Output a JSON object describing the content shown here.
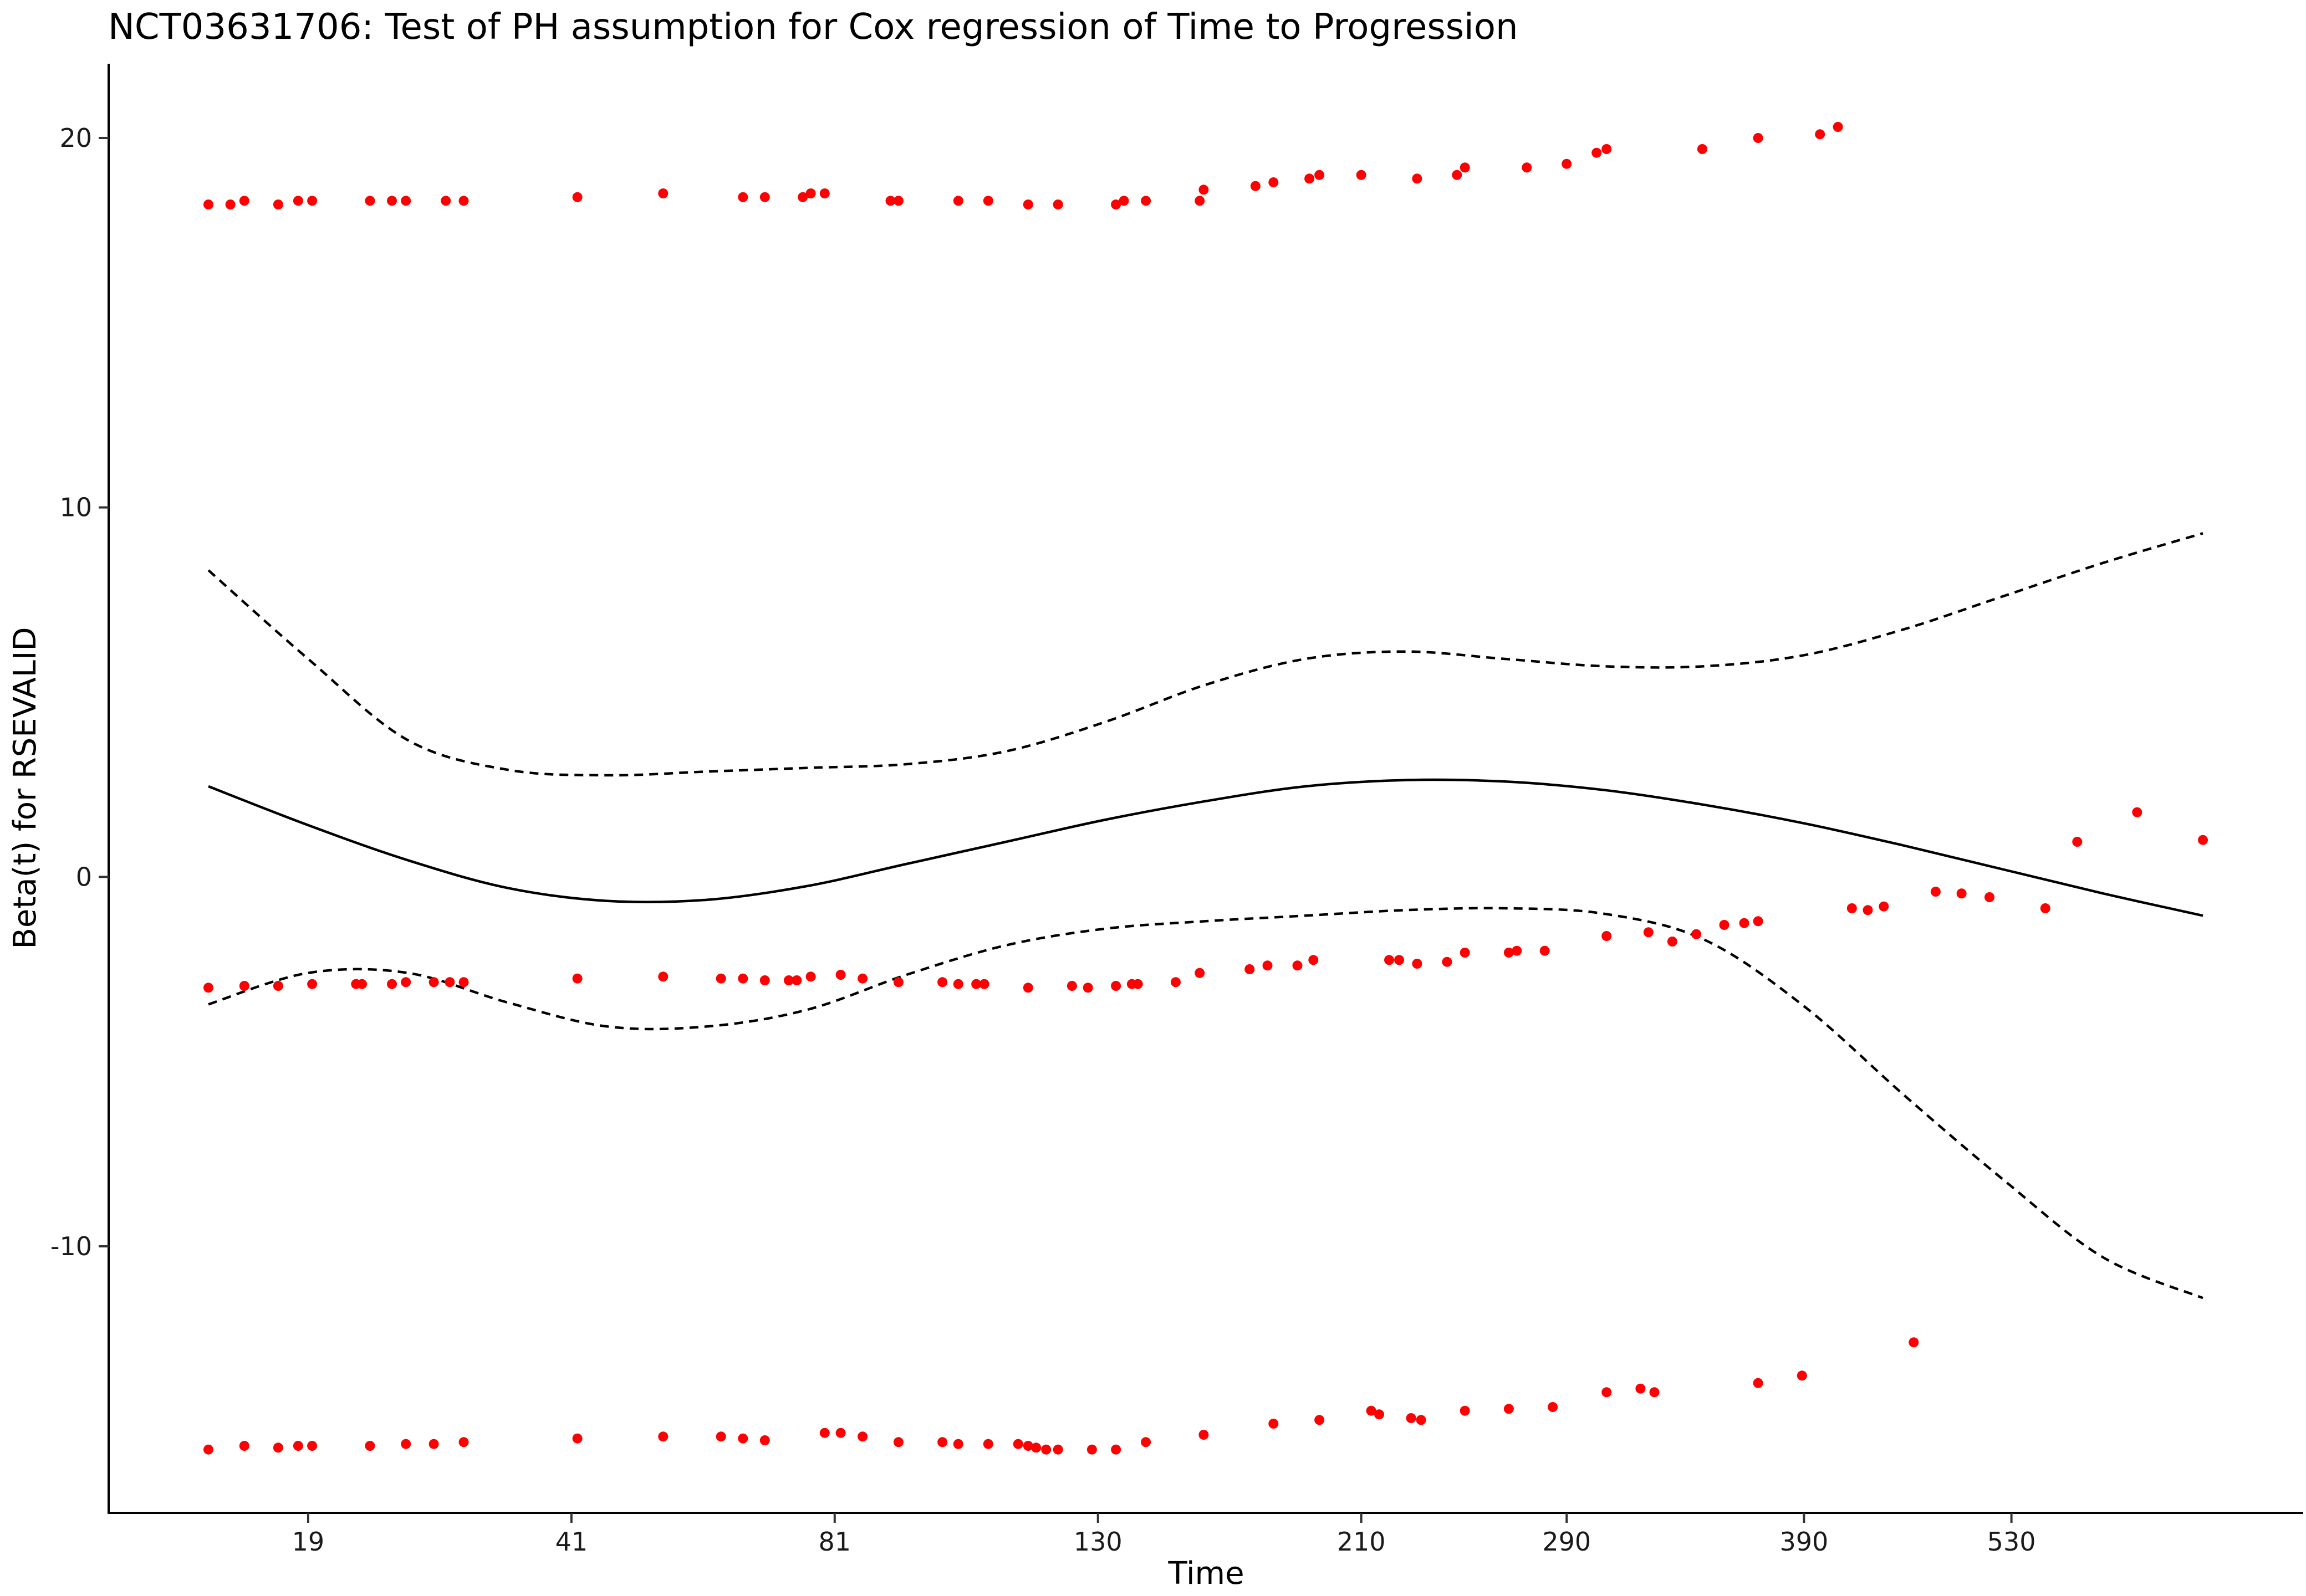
{
  "chart_data": {
    "type": "scatter",
    "title": "NCT03631706: Test of PH assumption for Cox regression of Time to Progression",
    "xlabel": "Time",
    "ylabel": "Beta(t) for RSEVALID",
    "x_scale": "km-transformed (positions 0-1 on shown range)",
    "xlim": [
      -0.02,
      1.03
    ],
    "ylim": [
      -17.3,
      22
    ],
    "x_ticks": [
      {
        "label": "19",
        "pos": 0.05
      },
      {
        "label": "41",
        "pos": 0.182
      },
      {
        "label": "81",
        "pos": 0.314
      },
      {
        "label": "130",
        "pos": 0.446
      },
      {
        "label": "210",
        "pos": 0.578
      },
      {
        "label": "290",
        "pos": 0.681
      },
      {
        "label": "390",
        "pos": 0.8
      },
      {
        "label": "530",
        "pos": 0.904
      }
    ],
    "y_ticks": [
      {
        "label": "-10",
        "value": -10
      },
      {
        "label": "0",
        "value": 0
      },
      {
        "label": "10",
        "value": 10
      },
      {
        "label": "20",
        "value": 20
      }
    ],
    "grid": false,
    "legend": "none",
    "colors": {
      "points": "#ff0000",
      "lines": "#000000"
    },
    "series": [
      {
        "role": "fitted",
        "style": "solid",
        "x": [
          0,
          0.05,
          0.1,
          0.15,
          0.2,
          0.25,
          0.3,
          0.35,
          0.4,
          0.45,
          0.5,
          0.55,
          0.6,
          0.65,
          0.7,
          0.75,
          0.8,
          0.85,
          0.9,
          0.95,
          1.0
        ],
        "y": [
          2.45,
          1.4,
          0.45,
          -0.3,
          -0.65,
          -0.62,
          -0.25,
          0.35,
          0.95,
          1.55,
          2.05,
          2.45,
          2.62,
          2.58,
          2.35,
          1.95,
          1.45,
          0.85,
          0.2,
          -0.45,
          -1.05
        ]
      },
      {
        "role": "upper-ci",
        "style": "dashed",
        "x": [
          0,
          0.05,
          0.1,
          0.15,
          0.2,
          0.25,
          0.3,
          0.35,
          0.4,
          0.45,
          0.5,
          0.55,
          0.6,
          0.65,
          0.7,
          0.75,
          0.8,
          0.85,
          0.9,
          0.95,
          1.0
        ],
        "y": [
          8.3,
          5.9,
          3.7,
          2.9,
          2.75,
          2.85,
          2.95,
          3.05,
          3.4,
          4.2,
          5.2,
          5.9,
          6.1,
          5.9,
          5.7,
          5.7,
          6.0,
          6.7,
          7.6,
          8.5,
          9.3
        ]
      },
      {
        "role": "lower-ci",
        "style": "dashed",
        "x": [
          0,
          0.05,
          0.1,
          0.15,
          0.2,
          0.25,
          0.3,
          0.35,
          0.4,
          0.45,
          0.5,
          0.55,
          0.6,
          0.65,
          0.7,
          0.75,
          0.8,
          0.85,
          0.9,
          0.95,
          1.0
        ],
        "y": [
          -3.45,
          -2.6,
          -2.6,
          -3.4,
          -4.05,
          -4.05,
          -3.6,
          -2.65,
          -1.85,
          -1.4,
          -1.2,
          -1.05,
          -0.9,
          -0.85,
          -1.0,
          -1.7,
          -3.5,
          -5.9,
          -8.2,
          -10.3,
          -11.4
        ]
      },
      {
        "role": "residuals",
        "style": "points",
        "points": [
          [
            0.0,
            18.2
          ],
          [
            0.011,
            18.2
          ],
          [
            0.018,
            18.3
          ],
          [
            0.035,
            18.2
          ],
          [
            0.045,
            18.3
          ],
          [
            0.052,
            18.3
          ],
          [
            0.081,
            18.3
          ],
          [
            0.092,
            18.3
          ],
          [
            0.099,
            18.3
          ],
          [
            0.119,
            18.3
          ],
          [
            0.128,
            18.3
          ],
          [
            0.185,
            18.4
          ],
          [
            0.228,
            18.5
          ],
          [
            0.268,
            18.4
          ],
          [
            0.279,
            18.4
          ],
          [
            0.298,
            18.4
          ],
          [
            0.302,
            18.5
          ],
          [
            0.309,
            18.5
          ],
          [
            0.342,
            18.3
          ],
          [
            0.346,
            18.3
          ],
          [
            0.376,
            18.3
          ],
          [
            0.391,
            18.3
          ],
          [
            0.411,
            18.2
          ],
          [
            0.426,
            18.2
          ],
          [
            0.455,
            18.2
          ],
          [
            0.459,
            18.3
          ],
          [
            0.47,
            18.3
          ],
          [
            0.497,
            18.3
          ],
          [
            0.499,
            18.6
          ],
          [
            0.525,
            18.7
          ],
          [
            0.534,
            18.8
          ],
          [
            0.552,
            18.9
          ],
          [
            0.557,
            19.0
          ],
          [
            0.578,
            19.0
          ],
          [
            0.606,
            18.9
          ],
          [
            0.626,
            19.0
          ],
          [
            0.63,
            19.2
          ],
          [
            0.661,
            19.2
          ],
          [
            0.681,
            19.3
          ],
          [
            0.696,
            19.6
          ],
          [
            0.701,
            19.7
          ],
          [
            0.749,
            19.7
          ],
          [
            0.777,
            20.0
          ],
          [
            0.808,
            20.1
          ],
          [
            0.817,
            20.3
          ],
          [
            0.0,
            -3.0
          ],
          [
            0.018,
            -2.95
          ],
          [
            0.035,
            -2.95
          ],
          [
            0.052,
            -2.9
          ],
          [
            0.074,
            -2.9
          ],
          [
            0.077,
            -2.9
          ],
          [
            0.092,
            -2.9
          ],
          [
            0.099,
            -2.85
          ],
          [
            0.113,
            -2.85
          ],
          [
            0.121,
            -2.85
          ],
          [
            0.128,
            -2.85
          ],
          [
            0.185,
            -2.75
          ],
          [
            0.228,
            -2.7
          ],
          [
            0.257,
            -2.75
          ],
          [
            0.268,
            -2.75
          ],
          [
            0.279,
            -2.8
          ],
          [
            0.291,
            -2.8
          ],
          [
            0.295,
            -2.8
          ],
          [
            0.302,
            -2.7
          ],
          [
            0.317,
            -2.65
          ],
          [
            0.328,
            -2.75
          ],
          [
            0.346,
            -2.85
          ],
          [
            0.368,
            -2.85
          ],
          [
            0.376,
            -2.9
          ],
          [
            0.385,
            -2.9
          ],
          [
            0.389,
            -2.9
          ],
          [
            0.411,
            -3.0
          ],
          [
            0.433,
            -2.95
          ],
          [
            0.441,
            -3.0
          ],
          [
            0.455,
            -2.95
          ],
          [
            0.463,
            -2.9
          ],
          [
            0.466,
            -2.9
          ],
          [
            0.485,
            -2.85
          ],
          [
            0.497,
            -2.6
          ],
          [
            0.522,
            -2.5
          ],
          [
            0.531,
            -2.4
          ],
          [
            0.546,
            -2.4
          ],
          [
            0.554,
            -2.25
          ],
          [
            0.592,
            -2.25
          ],
          [
            0.597,
            -2.25
          ],
          [
            0.606,
            -2.35
          ],
          [
            0.621,
            -2.3
          ],
          [
            0.63,
            -2.05
          ],
          [
            0.652,
            -2.05
          ],
          [
            0.656,
            -2.0
          ],
          [
            0.67,
            -2.0
          ],
          [
            0.701,
            -1.6
          ],
          [
            0.722,
            -1.5
          ],
          [
            0.734,
            -1.75
          ],
          [
            0.746,
            -1.55
          ],
          [
            0.76,
            -1.3
          ],
          [
            0.77,
            -1.25
          ],
          [
            0.777,
            -1.2
          ],
          [
            0.824,
            -0.85
          ],
          [
            0.832,
            -0.9
          ],
          [
            0.84,
            -0.8
          ],
          [
            0.866,
            -0.4
          ],
          [
            0.879,
            -0.45
          ],
          [
            0.893,
            -0.55
          ],
          [
            0.921,
            -0.85
          ],
          [
            0.937,
            0.95
          ],
          [
            0.967,
            1.75
          ],
          [
            1.0,
            1.0
          ],
          [
            0.0,
            -15.5
          ],
          [
            0.018,
            -15.4
          ],
          [
            0.035,
            -15.45
          ],
          [
            0.045,
            -15.4
          ],
          [
            0.052,
            -15.4
          ],
          [
            0.081,
            -15.4
          ],
          [
            0.099,
            -15.35
          ],
          [
            0.113,
            -15.35
          ],
          [
            0.128,
            -15.3
          ],
          [
            0.185,
            -15.2
          ],
          [
            0.228,
            -15.15
          ],
          [
            0.257,
            -15.15
          ],
          [
            0.268,
            -15.2
          ],
          [
            0.279,
            -15.25
          ],
          [
            0.309,
            -15.05
          ],
          [
            0.317,
            -15.05
          ],
          [
            0.328,
            -15.15
          ],
          [
            0.346,
            -15.3
          ],
          [
            0.368,
            -15.3
          ],
          [
            0.376,
            -15.35
          ],
          [
            0.391,
            -15.35
          ],
          [
            0.406,
            -15.35
          ],
          [
            0.411,
            -15.4
          ],
          [
            0.415,
            -15.45
          ],
          [
            0.42,
            -15.5
          ],
          [
            0.426,
            -15.5
          ],
          [
            0.443,
            -15.5
          ],
          [
            0.455,
            -15.5
          ],
          [
            0.47,
            -15.3
          ],
          [
            0.499,
            -15.1
          ],
          [
            0.534,
            -14.8
          ],
          [
            0.557,
            -14.7
          ],
          [
            0.583,
            -14.45
          ],
          [
            0.587,
            -14.55
          ],
          [
            0.603,
            -14.65
          ],
          [
            0.608,
            -14.7
          ],
          [
            0.63,
            -14.45
          ],
          [
            0.652,
            -14.4
          ],
          [
            0.674,
            -14.35
          ],
          [
            0.701,
            -13.95
          ],
          [
            0.718,
            -13.85
          ],
          [
            0.725,
            -13.95
          ],
          [
            0.777,
            -13.7
          ],
          [
            0.799,
            -13.5
          ],
          [
            0.855,
            -12.6
          ]
        ]
      }
    ]
  }
}
